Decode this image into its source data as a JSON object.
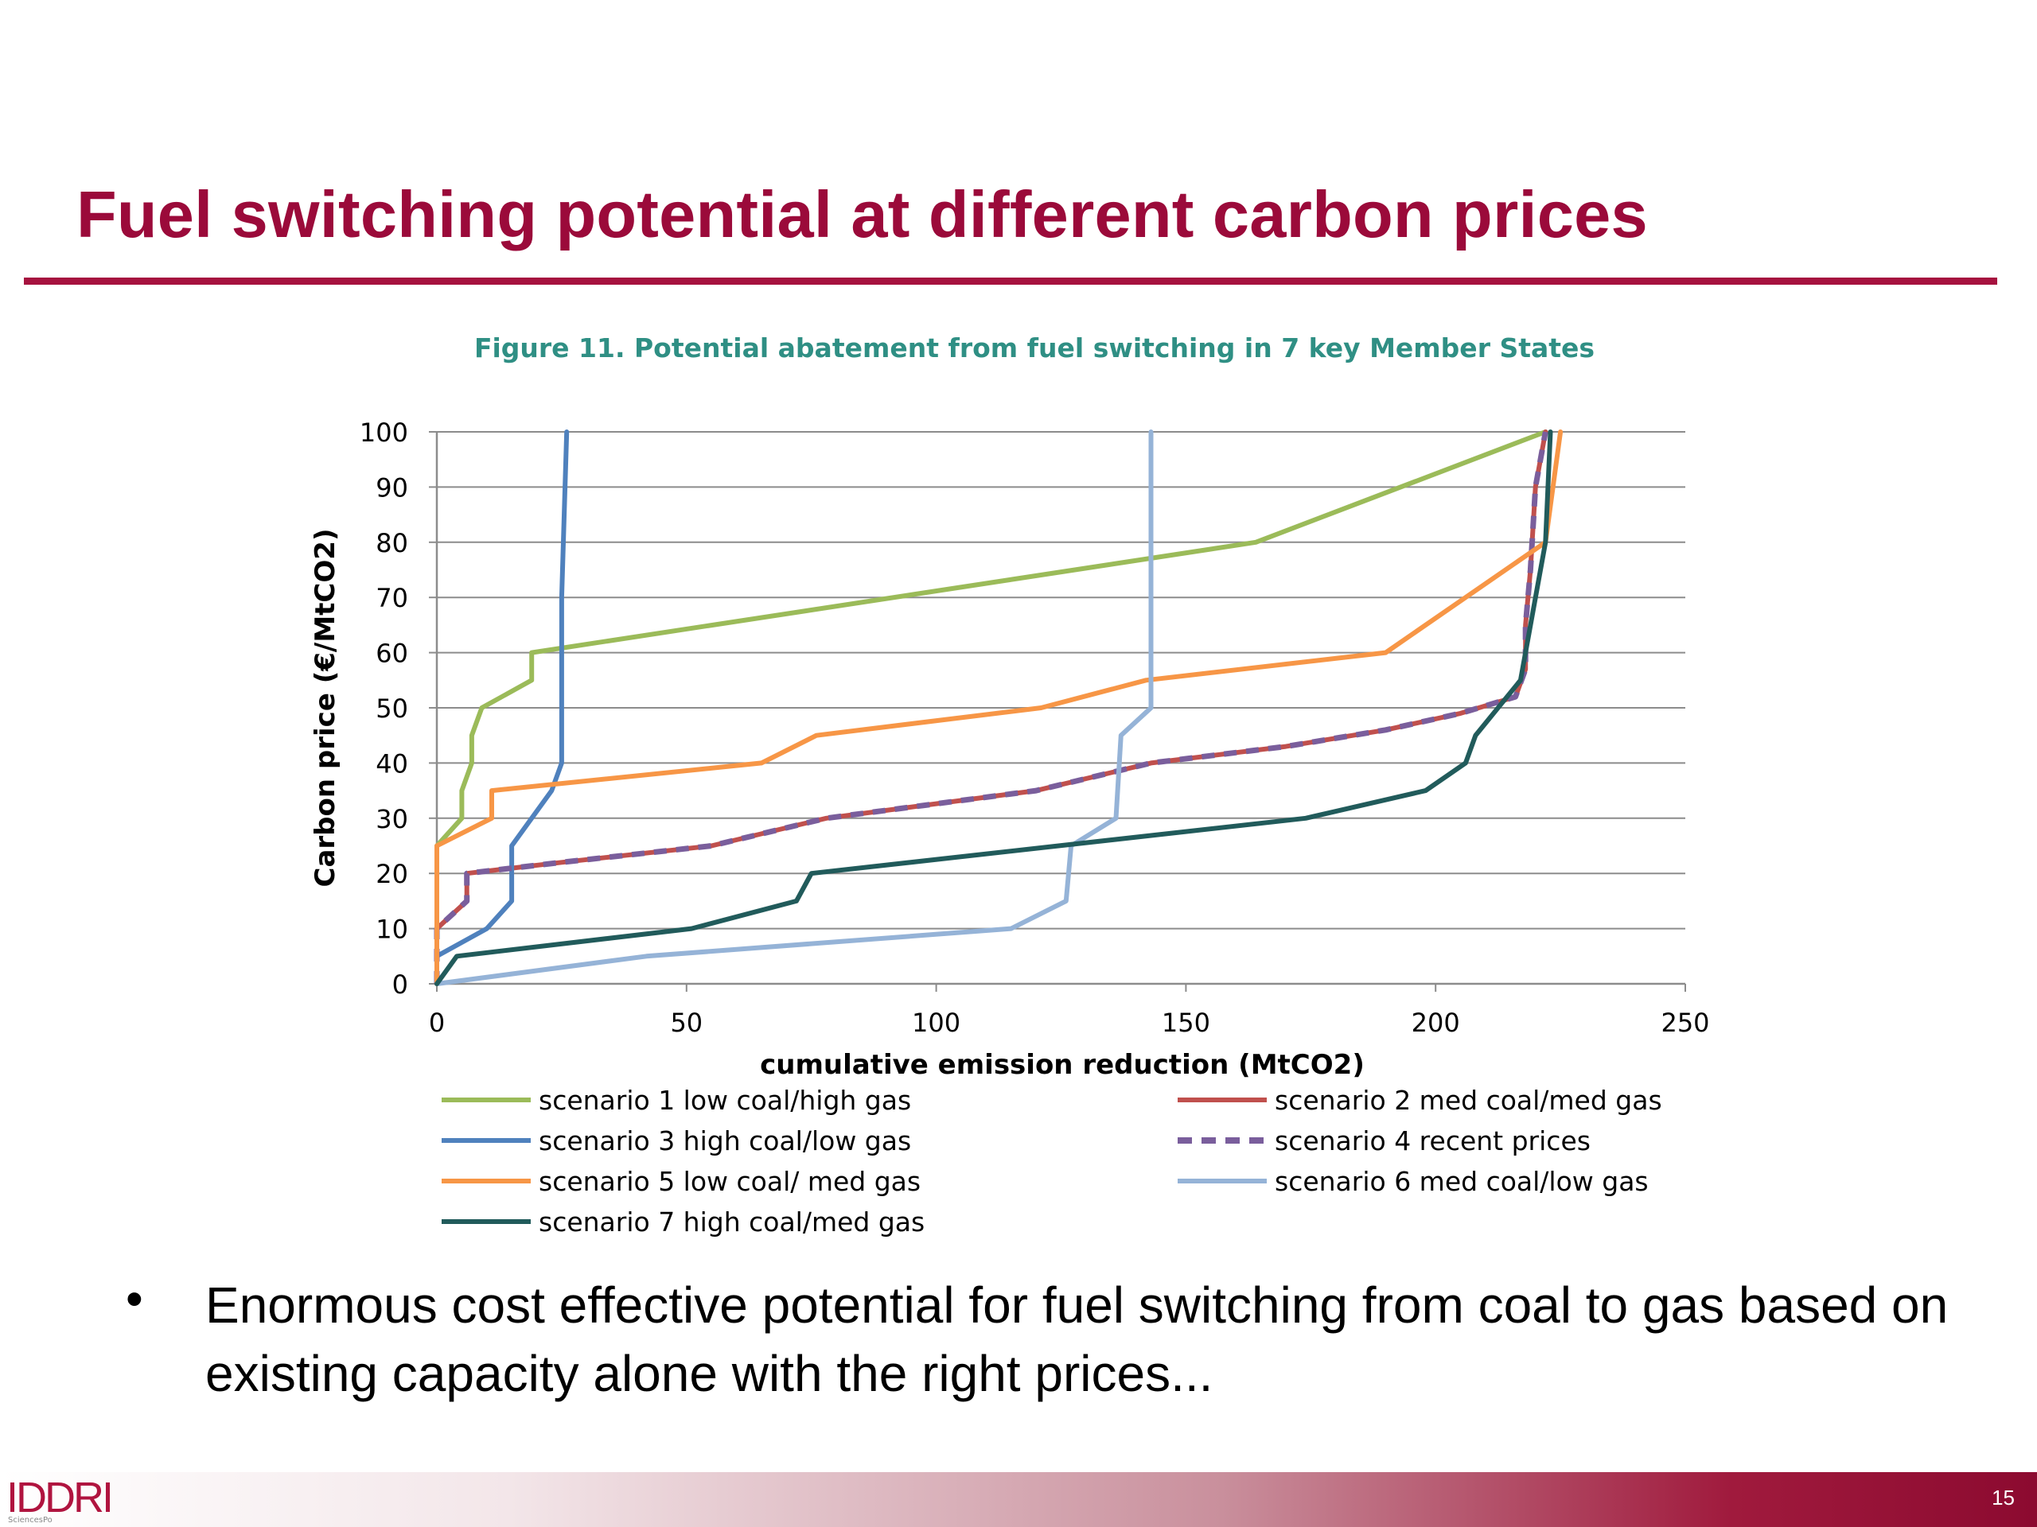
{
  "slide": {
    "title": "Fuel switching potential at different carbon prices",
    "bullet": "Enormous cost effective potential for fuel switching from coal to gas based on existing capacity alone with the right prices...",
    "bullet_marker": "•",
    "page_number": "15",
    "logo": "IDDRI",
    "logo_sub": "SciencesPo",
    "accent_color": "#9b0a3a"
  },
  "chart_data": {
    "type": "line",
    "title": "Figure 11. Potential abatement from fuel switching in 7 key Member States",
    "xlabel": "cumulative emission reduction (MtCO2)",
    "ylabel": "Carbon price (€/MtCO2)",
    "xlim": [
      0,
      250
    ],
    "ylim": [
      0,
      100
    ],
    "xticks": [
      0,
      50,
      100,
      150,
      200,
      250
    ],
    "yticks": [
      0,
      10,
      20,
      30,
      40,
      50,
      60,
      70,
      80,
      90,
      100
    ],
    "grid": "horizontal",
    "legend_position": "bottom",
    "series": [
      {
        "name": "scenario 1 low coal/high gas",
        "color": "#9bbb59",
        "dash": "solid",
        "points": [
          [
            0,
            0
          ],
          [
            0,
            25
          ],
          [
            5,
            30
          ],
          [
            5,
            35
          ],
          [
            7,
            40
          ],
          [
            7,
            45
          ],
          [
            9,
            50
          ],
          [
            19,
            55
          ],
          [
            19,
            60
          ],
          [
            164,
            80
          ],
          [
            222,
            100
          ]
        ]
      },
      {
        "name": "scenario 2 med coal/med gas",
        "color": "#c0504d",
        "dash": "solid",
        "points": [
          [
            0,
            0
          ],
          [
            0,
            10
          ],
          [
            6,
            15
          ],
          [
            6,
            20
          ],
          [
            25,
            22
          ],
          [
            55,
            25
          ],
          [
            78,
            30
          ],
          [
            120,
            35
          ],
          [
            143,
            40
          ],
          [
            170,
            43
          ],
          [
            190,
            46
          ],
          [
            205,
            49
          ],
          [
            216,
            52
          ],
          [
            218,
            57
          ],
          [
            218,
            65
          ],
          [
            219,
            75
          ],
          [
            220,
            90
          ],
          [
            222,
            100
          ]
        ]
      },
      {
        "name": "scenario 3 high coal/low gas",
        "color": "#4f81bd",
        "dash": "solid",
        "points": [
          [
            0,
            0
          ],
          [
            0,
            5
          ],
          [
            10,
            10
          ],
          [
            15,
            15
          ],
          [
            15,
            25
          ],
          [
            23,
            35
          ],
          [
            25,
            40
          ],
          [
            25,
            50
          ],
          [
            25,
            70
          ],
          [
            26,
            100
          ]
        ]
      },
      {
        "name": "scenario 4 recent prices",
        "color": "#7a5e9c",
        "dash": "dashed",
        "points": [
          [
            0,
            0
          ],
          [
            0,
            10
          ],
          [
            6,
            15
          ],
          [
            6,
            20
          ],
          [
            25,
            22
          ],
          [
            55,
            25
          ],
          [
            78,
            30
          ],
          [
            120,
            35
          ],
          [
            143,
            40
          ],
          [
            170,
            43
          ],
          [
            190,
            46
          ],
          [
            205,
            49
          ],
          [
            216,
            52
          ],
          [
            218,
            57
          ],
          [
            218,
            65
          ],
          [
            219,
            75
          ],
          [
            220,
            90
          ],
          [
            222,
            100
          ]
        ]
      },
      {
        "name": "scenario 5 low coal/ med gas",
        "color": "#f79646",
        "dash": "solid",
        "points": [
          [
            0,
            0
          ],
          [
            0,
            25
          ],
          [
            11,
            30
          ],
          [
            11,
            35
          ],
          [
            65,
            40
          ],
          [
            76,
            45
          ],
          [
            121,
            50
          ],
          [
            142,
            55
          ],
          [
            190,
            60
          ],
          [
            222,
            80
          ],
          [
            225,
            100
          ]
        ]
      },
      {
        "name": "scenario 6 med coal/low gas",
        "color": "#95b3d7",
        "dash": "solid",
        "points": [
          [
            0,
            0
          ],
          [
            42,
            5
          ],
          [
            115,
            10
          ],
          [
            126,
            15
          ],
          [
            127,
            25
          ],
          [
            136,
            30
          ],
          [
            137,
            45
          ],
          [
            143,
            50
          ],
          [
            143,
            100
          ]
        ]
      },
      {
        "name": "scenario 7 high coal/med gas",
        "color": "#215b5b",
        "dash": "solid",
        "points": [
          [
            0,
            0
          ],
          [
            4,
            5
          ],
          [
            51,
            10
          ],
          [
            72,
            15
          ],
          [
            75,
            20
          ],
          [
            174,
            30
          ],
          [
            198,
            35
          ],
          [
            206,
            40
          ],
          [
            208,
            45
          ],
          [
            217,
            55
          ],
          [
            222,
            80
          ],
          [
            223,
            100
          ]
        ]
      }
    ]
  }
}
